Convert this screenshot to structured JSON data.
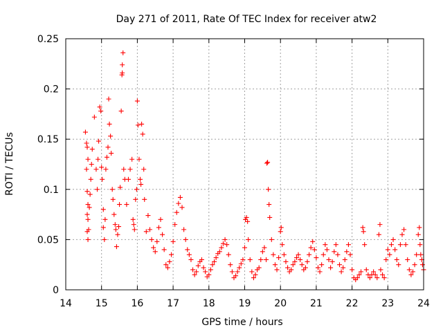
{
  "chart_data": {
    "type": "scatter",
    "title": "Day 271 of 2011, Rate Of TEC Index for receiver atw2",
    "xlabel": "GPS time / hours",
    "ylabel": "ROTI / TECUs",
    "xlim": [
      14,
      24
    ],
    "ylim": [
      0,
      0.25
    ],
    "xticks": [
      "14",
      "15",
      "16",
      "17",
      "18",
      "19",
      "20",
      "21",
      "22",
      "23",
      "24"
    ],
    "yticks": [
      "0",
      "0.05",
      "0.1",
      "0.15",
      "0.2",
      "0.25"
    ],
    "grid": true,
    "marker": "+",
    "color": "#ff0000",
    "series": [
      {
        "points": [
          [
            14.55,
            0.157
          ],
          [
            14.58,
            0.146
          ],
          [
            14.6,
            0.142
          ],
          [
            14.62,
            0.13
          ],
          [
            14.58,
            0.12
          ],
          [
            14.6,
            0.098
          ],
          [
            14.62,
            0.085
          ],
          [
            14.6,
            0.075
          ],
          [
            14.62,
            0.07
          ],
          [
            14.6,
            0.058
          ],
          [
            14.62,
            0.05
          ],
          [
            14.64,
            0.06
          ],
          [
            14.66,
            0.082
          ],
          [
            14.68,
            0.095
          ],
          [
            14.7,
            0.11
          ],
          [
            14.72,
            0.125
          ],
          [
            14.74,
            0.14
          ],
          [
            14.8,
            0.172
          ],
          [
            14.85,
            0.12
          ],
          [
            14.88,
            0.1
          ],
          [
            14.9,
            0.13
          ],
          [
            14.92,
            0.148
          ],
          [
            14.95,
            0.182
          ],
          [
            14.98,
            0.178
          ],
          [
            15.0,
            0.122
          ],
          [
            15.02,
            0.11
          ],
          [
            15.05,
            0.08
          ],
          [
            15.05,
            0.062
          ],
          [
            15.08,
            0.05
          ],
          [
            15.1,
            0.07
          ],
          [
            15.12,
            0.12
          ],
          [
            15.15,
            0.132
          ],
          [
            15.18,
            0.142
          ],
          [
            15.2,
            0.19
          ],
          [
            15.22,
            0.165
          ],
          [
            15.25,
            0.153
          ],
          [
            15.27,
            0.136
          ],
          [
            15.3,
            0.1
          ],
          [
            15.32,
            0.09
          ],
          [
            15.35,
            0.075
          ],
          [
            15.38,
            0.065
          ],
          [
            15.4,
            0.06
          ],
          [
            15.42,
            0.043
          ],
          [
            15.45,
            0.055
          ],
          [
            15.48,
            0.063
          ],
          [
            15.5,
            0.085
          ],
          [
            15.52,
            0.102
          ],
          [
            15.55,
            0.178
          ],
          [
            15.57,
            0.214
          ],
          [
            15.58,
            0.216
          ],
          [
            15.58,
            0.224
          ],
          [
            15.6,
            0.236
          ],
          [
            15.62,
            0.12
          ],
          [
            15.65,
            0.11
          ],
          [
            15.7,
            0.085
          ],
          [
            15.75,
            0.11
          ],
          [
            15.8,
            0.12
          ],
          [
            15.85,
            0.13
          ],
          [
            15.88,
            0.07
          ],
          [
            15.9,
            0.065
          ],
          [
            15.92,
            0.06
          ],
          [
            15.95,
            0.09
          ],
          [
            15.98,
            0.1
          ],
          [
            16.0,
            0.188
          ],
          [
            16.02,
            0.164
          ],
          [
            16.05,
            0.13
          ],
          [
            16.08,
            0.11
          ],
          [
            16.1,
            0.105
          ],
          [
            16.12,
            0.165
          ],
          [
            16.15,
            0.155
          ],
          [
            16.18,
            0.12
          ],
          [
            16.2,
            0.09
          ],
          [
            16.25,
            0.058
          ],
          [
            16.3,
            0.074
          ],
          [
            16.35,
            0.06
          ],
          [
            16.4,
            0.05
          ],
          [
            16.45,
            0.042
          ],
          [
            16.5,
            0.038
          ],
          [
            16.55,
            0.048
          ],
          [
            16.6,
            0.062
          ],
          [
            16.65,
            0.07
          ],
          [
            16.7,
            0.055
          ],
          [
            16.75,
            0.04
          ],
          [
            16.8,
            0.025
          ],
          [
            16.85,
            0.022
          ],
          [
            16.9,
            0.028
          ],
          [
            16.95,
            0.035
          ],
          [
            17.0,
            0.048
          ],
          [
            17.05,
            0.065
          ],
          [
            17.1,
            0.077
          ],
          [
            17.15,
            0.086
          ],
          [
            17.2,
            0.092
          ],
          [
            17.25,
            0.082
          ],
          [
            17.3,
            0.06
          ],
          [
            17.35,
            0.05
          ],
          [
            17.4,
            0.04
          ],
          [
            17.45,
            0.035
          ],
          [
            17.5,
            0.03
          ],
          [
            17.55,
            0.02
          ],
          [
            17.6,
            0.015
          ],
          [
            17.65,
            0.018
          ],
          [
            17.7,
            0.024
          ],
          [
            17.75,
            0.028
          ],
          [
            17.8,
            0.03
          ],
          [
            17.85,
            0.022
          ],
          [
            17.9,
            0.018
          ],
          [
            17.95,
            0.013
          ],
          [
            18.0,
            0.015
          ],
          [
            18.05,
            0.02
          ],
          [
            18.1,
            0.025
          ],
          [
            18.15,
            0.028
          ],
          [
            18.2,
            0.032
          ],
          [
            18.25,
            0.036
          ],
          [
            18.3,
            0.038
          ],
          [
            18.35,
            0.042
          ],
          [
            18.4,
            0.046
          ],
          [
            18.45,
            0.05
          ],
          [
            18.5,
            0.045
          ],
          [
            18.55,
            0.035
          ],
          [
            18.6,
            0.025
          ],
          [
            18.65,
            0.018
          ],
          [
            18.7,
            0.012
          ],
          [
            18.75,
            0.014
          ],
          [
            18.8,
            0.018
          ],
          [
            18.85,
            0.022
          ],
          [
            18.9,
            0.026
          ],
          [
            18.95,
            0.03
          ],
          [
            19.0,
            0.042
          ],
          [
            19.02,
            0.07
          ],
          [
            19.05,
            0.072
          ],
          [
            19.08,
            0.068
          ],
          [
            19.1,
            0.05
          ],
          [
            19.15,
            0.03
          ],
          [
            19.2,
            0.018
          ],
          [
            19.25,
            0.012
          ],
          [
            19.3,
            0.015
          ],
          [
            19.35,
            0.02
          ],
          [
            19.4,
            0.022
          ],
          [
            19.45,
            0.03
          ],
          [
            19.5,
            0.038
          ],
          [
            19.55,
            0.042
          ],
          [
            19.6,
            0.03
          ],
          [
            19.62,
            0.126
          ],
          [
            19.64,
            0.127
          ],
          [
            19.66,
            0.1
          ],
          [
            19.68,
            0.085
          ],
          [
            19.7,
            0.072
          ],
          [
            19.75,
            0.05
          ],
          [
            19.8,
            0.035
          ],
          [
            19.85,
            0.025
          ],
          [
            19.9,
            0.02
          ],
          [
            19.95,
            0.032
          ],
          [
            20.0,
            0.058
          ],
          [
            20.02,
            0.062
          ],
          [
            20.05,
            0.045
          ],
          [
            20.1,
            0.035
          ],
          [
            20.15,
            0.028
          ],
          [
            20.2,
            0.022
          ],
          [
            20.25,
            0.018
          ],
          [
            20.3,
            0.02
          ],
          [
            20.35,
            0.025
          ],
          [
            20.4,
            0.028
          ],
          [
            20.45,
            0.032
          ],
          [
            20.5,
            0.035
          ],
          [
            20.55,
            0.03
          ],
          [
            20.6,
            0.025
          ],
          [
            20.65,
            0.02
          ],
          [
            20.7,
            0.022
          ],
          [
            20.75,
            0.028
          ],
          [
            20.8,
            0.035
          ],
          [
            20.85,
            0.042
          ],
          [
            20.9,
            0.048
          ],
          [
            20.95,
            0.04
          ],
          [
            21.0,
            0.032
          ],
          [
            21.05,
            0.022
          ],
          [
            21.1,
            0.018
          ],
          [
            21.15,
            0.025
          ],
          [
            21.2,
            0.035
          ],
          [
            21.25,
            0.045
          ],
          [
            21.3,
            0.04
          ],
          [
            21.35,
            0.03
          ],
          [
            21.4,
            0.022
          ],
          [
            21.45,
            0.028
          ],
          [
            21.5,
            0.038
          ],
          [
            21.55,
            0.045
          ],
          [
            21.6,
            0.035
          ],
          [
            21.65,
            0.025
          ],
          [
            21.7,
            0.018
          ],
          [
            21.75,
            0.022
          ],
          [
            21.8,
            0.03
          ],
          [
            21.85,
            0.038
          ],
          [
            21.9,
            0.045
          ],
          [
            21.95,
            0.035
          ],
          [
            22.0,
            0.02
          ],
          [
            22.05,
            0.012
          ],
          [
            22.1,
            0.01
          ],
          [
            22.15,
            0.012
          ],
          [
            22.2,
            0.015
          ],
          [
            22.25,
            0.018
          ],
          [
            22.3,
            0.062
          ],
          [
            22.32,
            0.058
          ],
          [
            22.35,
            0.045
          ],
          [
            22.4,
            0.02
          ],
          [
            22.45,
            0.015
          ],
          [
            22.5,
            0.012
          ],
          [
            22.55,
            0.015
          ],
          [
            22.6,
            0.018
          ],
          [
            22.65,
            0.015
          ],
          [
            22.7,
            0.012
          ],
          [
            22.75,
            0.055
          ],
          [
            22.78,
            0.065
          ],
          [
            22.8,
            0.02
          ],
          [
            22.85,
            0.015
          ],
          [
            22.9,
            0.012
          ],
          [
            22.95,
            0.03
          ],
          [
            23.0,
            0.04
          ],
          [
            23.05,
            0.035
          ],
          [
            23.1,
            0.045
          ],
          [
            23.15,
            0.05
          ],
          [
            23.2,
            0.04
          ],
          [
            23.25,
            0.03
          ],
          [
            23.3,
            0.025
          ],
          [
            23.35,
            0.045
          ],
          [
            23.4,
            0.055
          ],
          [
            23.45,
            0.06
          ],
          [
            23.5,
            0.045
          ],
          [
            23.55,
            0.03
          ],
          [
            23.6,
            0.02
          ],
          [
            23.65,
            0.015
          ],
          [
            23.7,
            0.018
          ],
          [
            23.75,
            0.025
          ],
          [
            23.8,
            0.035
          ],
          [
            23.85,
            0.055
          ],
          [
            23.88,
            0.062
          ],
          [
            23.9,
            0.045
          ],
          [
            23.92,
            0.035
          ],
          [
            23.95,
            0.03
          ],
          [
            23.97,
            0.025
          ],
          [
            24.0,
            0.02
          ]
        ]
      }
    ]
  }
}
